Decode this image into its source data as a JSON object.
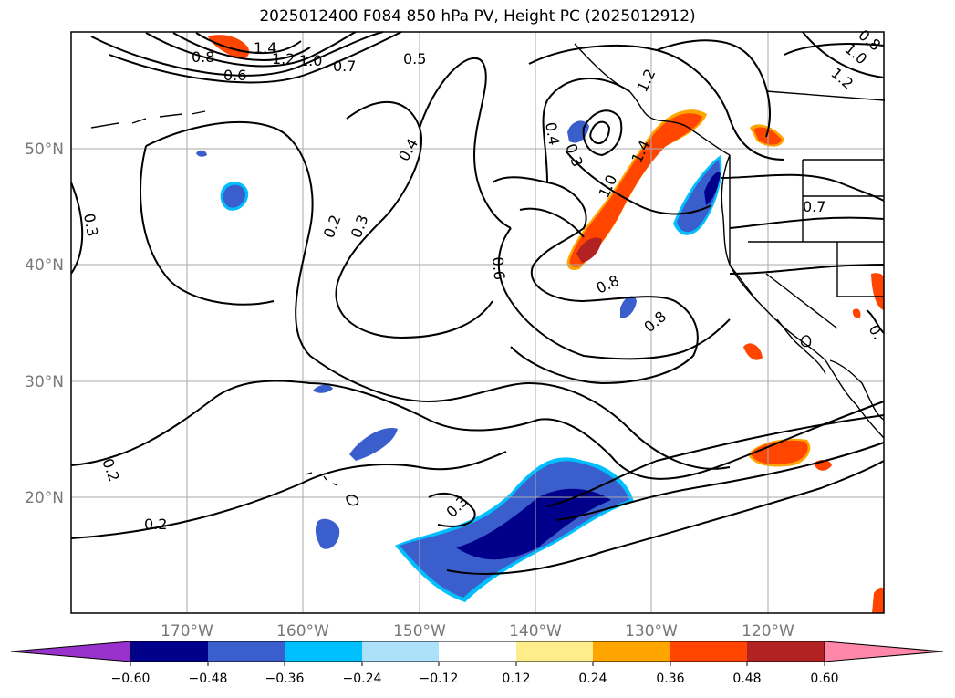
{
  "title": "2025012400 F084 850 hPa PV, Height PC (2025012912)",
  "lat_labels": [
    "50°N",
    "40°N",
    "30°N",
    "20°N"
  ],
  "lon_labels": [
    "170°W",
    "160°W",
    "150°W",
    "140°W",
    "130°W",
    "120°W"
  ],
  "contour_labels": [
    "1.4",
    "1.2",
    "1.0",
    "0.8",
    "0.6",
    "0.7",
    "0.5",
    "0.4",
    "0.3",
    "0.2",
    "0.3",
    "0.2",
    "0.2",
    "0.3",
    "0.6",
    "0.4",
    "0.3",
    "1.0",
    "1.4",
    "1.2",
    "0.8",
    "0.8",
    "0.7",
    "1.2",
    "1.0",
    "0.8",
    "0."
  ],
  "colorbar": {
    "ticks": [
      "−0.60",
      "−0.48",
      "−0.36",
      "−0.24",
      "−0.12",
      "0.12",
      "0.24",
      "0.36",
      "0.48",
      "0.60"
    ],
    "colors": [
      "#9932CC",
      "#00008B",
      "#3A5FCD",
      "#00BFFF",
      "#ADE1FA",
      "#FFFFFF",
      "#FFEC8B",
      "#FFA500",
      "#FF4500",
      "#B22222",
      "#FF88AA"
    ]
  },
  "chart_data": {
    "type": "heatmap",
    "title": "2025012400 F084 850 hPa PV, Height PC (2025012912)",
    "lon_range": [
      -180,
      -110
    ],
    "lat_range": [
      10,
      60
    ],
    "levels": [
      -0.6,
      -0.48,
      -0.36,
      -0.24,
      -0.12,
      0.12,
      0.24,
      0.36,
      0.48,
      0.6
    ],
    "contour_levels": [
      0.2,
      0.3,
      0.4,
      0.5,
      0.6,
      0.7,
      0.8,
      1.0,
      1.2,
      1.4
    ],
    "grid": true
  }
}
